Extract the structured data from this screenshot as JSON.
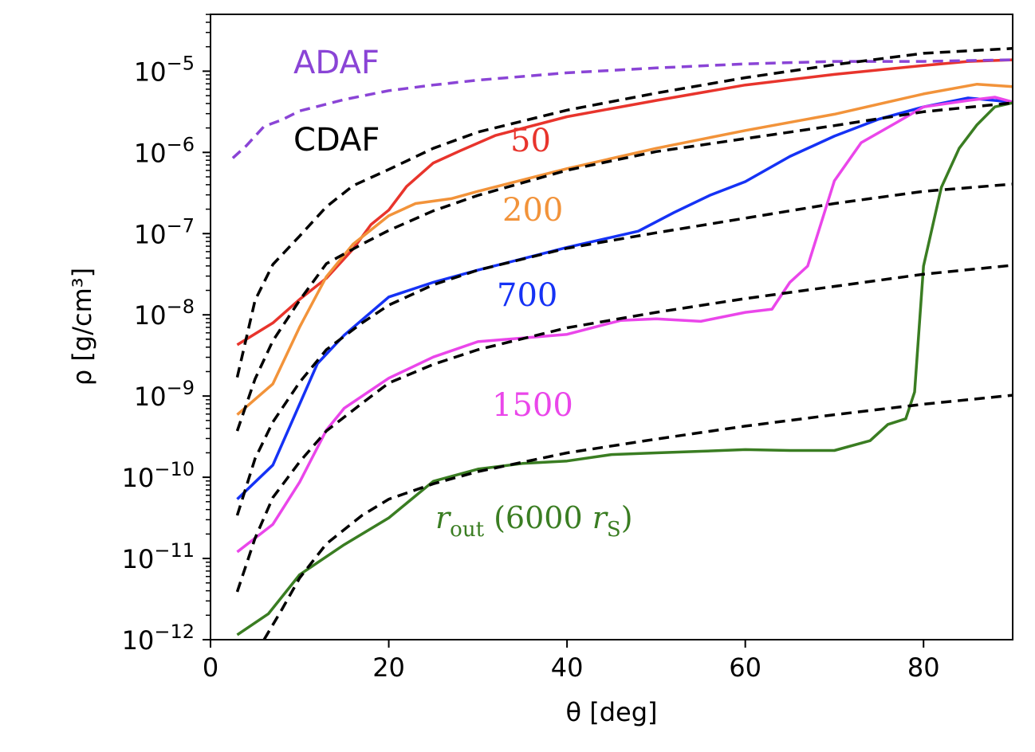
{
  "chart_data": {
    "type": "line",
    "title": "",
    "xlabel": "θ [deg]",
    "ylabel": "ρ [g/cm³]",
    "xlim": [
      0,
      90
    ],
    "ylim_log10": [
      -12,
      -4.3
    ],
    "yscale": "log",
    "x_ticks": [
      0,
      20,
      40,
      60,
      80
    ],
    "y_ticks_exponents": [
      -12,
      -11,
      -10,
      -9,
      -8,
      -7,
      -6,
      -5
    ],
    "y_tick_base": "10",
    "grid": false,
    "annotations": {
      "adaf": "ADAF",
      "cdaf": "CDAF",
      "r50": "50",
      "r200": "200",
      "r700": "700",
      "r1500": "1500",
      "rout_main": "r",
      "rout_sub": "out",
      "rout_mid": " (6000 ",
      "rout_r": "r",
      "rout_s": "S",
      "rout_close": ")"
    },
    "colors": {
      "adaf": "#8a44d6",
      "cdaf": "#000000",
      "r50": "#e8342c",
      "r200": "#f2933a",
      "r700": "#1532f5",
      "r1500": "#ea46ea",
      "rout": "#3a7d22"
    },
    "series": [
      {
        "name": "ADAF",
        "style": "dashed",
        "color": "#8a44d6",
        "x": [
          2.5,
          4,
          6,
          8,
          10,
          15,
          20,
          25,
          30,
          40,
          50,
          60,
          70,
          80,
          90
        ],
        "log10_y": [
          -6.07,
          -5.92,
          -5.68,
          -5.6,
          -5.49,
          -5.35,
          -5.24,
          -5.17,
          -5.11,
          -5.02,
          -4.96,
          -4.91,
          -4.88,
          -4.88,
          -4.86
        ]
      },
      {
        "name": "CDAF fit 50",
        "style": "dashed",
        "color": "#000000",
        "x": [
          3,
          5,
          7,
          10,
          13,
          16,
          20,
          25,
          30,
          40,
          50,
          60,
          70,
          80,
          90
        ],
        "log10_y": [
          -8.77,
          -7.82,
          -7.38,
          -7.03,
          -6.67,
          -6.41,
          -6.21,
          -5.95,
          -5.75,
          -5.48,
          -5.27,
          -5.08,
          -4.92,
          -4.78,
          -4.72
        ]
      },
      {
        "name": "CDAF fit 200",
        "style": "dashed",
        "color": "#000000",
        "x": [
          3,
          5,
          7,
          10,
          13,
          17,
          20,
          25,
          30,
          40,
          50,
          60,
          70,
          80,
          90
        ],
        "log10_y": [
          -9.43,
          -8.79,
          -8.32,
          -7.82,
          -7.37,
          -7.13,
          -6.96,
          -6.72,
          -6.53,
          -6.22,
          -5.99,
          -5.83,
          -5.67,
          -5.5,
          -5.39
        ]
      },
      {
        "name": "CDAF fit 700",
        "style": "dashed",
        "color": "#000000",
        "x": [
          3,
          5,
          7,
          10,
          13,
          17,
          20,
          25,
          30,
          40,
          50,
          60,
          70,
          80,
          90
        ],
        "log10_y": [
          -10.47,
          -9.77,
          -9.32,
          -8.83,
          -8.43,
          -8.1,
          -7.88,
          -7.63,
          -7.45,
          -7.18,
          -6.99,
          -6.81,
          -6.63,
          -6.48,
          -6.39
        ]
      },
      {
        "name": "CDAF fit 1500",
        "style": "dashed",
        "color": "#000000",
        "x": [
          3,
          5,
          7,
          10,
          13,
          17,
          20,
          25,
          30,
          40,
          50,
          60,
          70,
          80,
          90
        ],
        "log10_y": [
          -11.41,
          -10.75,
          -10.25,
          -9.81,
          -9.43,
          -9.09,
          -8.84,
          -8.61,
          -8.43,
          -8.16,
          -7.97,
          -7.8,
          -7.65,
          -7.5,
          -7.39
        ]
      },
      {
        "name": "CDAF fit rout",
        "style": "dashed",
        "color": "#000000",
        "x": [
          6,
          8,
          10,
          13,
          17,
          20,
          25,
          30,
          40,
          50,
          60,
          70,
          80,
          90
        ],
        "log10_y": [
          -12.0,
          -11.63,
          -11.24,
          -10.82,
          -10.47,
          -10.27,
          -10.08,
          -9.93,
          -9.7,
          -9.53,
          -9.37,
          -9.23,
          -9.1,
          -8.99
        ]
      },
      {
        "name": "50",
        "style": "solid",
        "color": "#e8342c",
        "x": [
          3,
          7,
          10,
          13,
          16,
          18,
          20,
          22,
          25,
          28,
          32,
          40,
          50,
          60,
          70,
          80,
          85,
          90
        ],
        "log10_y": [
          -8.37,
          -8.1,
          -7.81,
          -7.55,
          -7.19,
          -6.89,
          -6.71,
          -6.42,
          -6.13,
          -5.98,
          -5.79,
          -5.56,
          -5.36,
          -5.17,
          -5.04,
          -4.93,
          -4.88,
          -4.86
        ]
      },
      {
        "name": "200",
        "style": "solid",
        "color": "#f2933a",
        "x": [
          3,
          7,
          10,
          13,
          16,
          20,
          23,
          27,
          30,
          40,
          50,
          60,
          70,
          80,
          86,
          90
        ],
        "log10_y": [
          -9.23,
          -8.85,
          -8.15,
          -7.53,
          -7.13,
          -6.78,
          -6.63,
          -6.57,
          -6.48,
          -6.2,
          -5.95,
          -5.73,
          -5.53,
          -5.28,
          -5.16,
          -5.19
        ]
      },
      {
        "name": "700",
        "style": "solid",
        "color": "#1532f5",
        "x": [
          3,
          7,
          9,
          12,
          15,
          20,
          25,
          30,
          40,
          48,
          52,
          56,
          60,
          65,
          70,
          75,
          80,
          85,
          90
        ],
        "log10_y": [
          -10.27,
          -9.85,
          -9.35,
          -8.6,
          -8.25,
          -7.78,
          -7.6,
          -7.45,
          -7.17,
          -6.97,
          -6.74,
          -6.53,
          -6.36,
          -6.05,
          -5.8,
          -5.59,
          -5.44,
          -5.33,
          -5.38
        ]
      },
      {
        "name": "1500",
        "style": "solid",
        "color": "#ea46ea",
        "x": [
          3,
          7,
          10,
          13,
          15,
          20,
          25,
          30,
          40,
          46,
          50,
          55,
          60,
          63,
          65,
          67,
          70,
          73,
          77,
          80,
          85,
          88,
          90
        ],
        "log10_y": [
          -10.92,
          -10.58,
          -10.06,
          -9.42,
          -9.15,
          -8.78,
          -8.52,
          -8.33,
          -8.24,
          -8.07,
          -8.05,
          -8.08,
          -7.97,
          -7.93,
          -7.6,
          -7.4,
          -6.35,
          -5.88,
          -5.63,
          -5.44,
          -5.36,
          -5.32,
          -5.38
        ]
      },
      {
        "name": "rout (6000 rS)",
        "style": "solid",
        "color": "#3a7d22",
        "x": [
          3,
          6.5,
          10,
          15,
          20,
          25,
          30,
          35,
          40,
          45,
          50,
          55,
          60,
          65,
          70,
          74,
          76,
          78,
          79,
          80,
          82,
          84,
          86,
          88,
          90
        ],
        "log10_y": [
          -11.94,
          -11.68,
          -11.2,
          -10.83,
          -10.5,
          -10.05,
          -9.9,
          -9.83,
          -9.8,
          -9.72,
          -9.7,
          -9.68,
          -9.66,
          -9.67,
          -9.67,
          -9.55,
          -9.35,
          -9.28,
          -8.95,
          -7.4,
          -6.43,
          -5.95,
          -5.66,
          -5.44,
          -5.39
        ]
      }
    ]
  }
}
